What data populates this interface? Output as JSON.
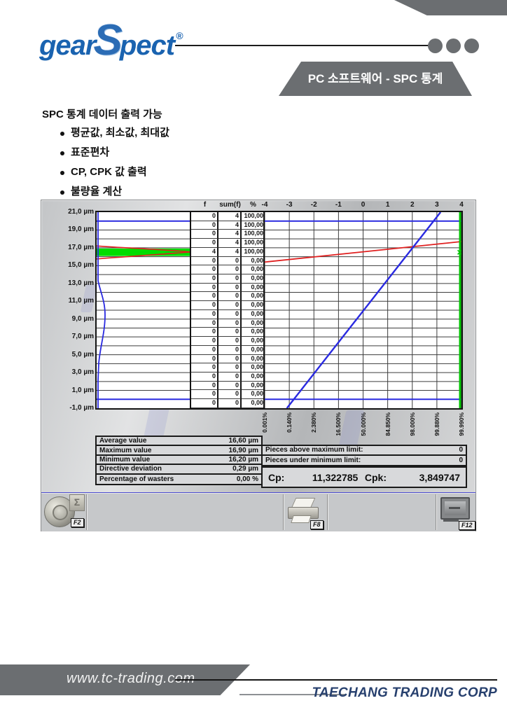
{
  "page": {
    "logo": {
      "part1": "gear",
      "part2": "S",
      "part3": "pect",
      "trademark": "®"
    },
    "header_banner": "PC 소프트웨어 - SPC 통계",
    "intro_title": "SPC 통계 데이터 출력 가능",
    "intro_bullets": [
      "평균값, 최소값, 최대값",
      "표준편차",
      "CP, CPK 값 출력",
      "불량율 계산"
    ],
    "footer": {
      "website": "www.tc-trading.com",
      "company": "TAECHANG TRADING CORP"
    }
  },
  "app": {
    "columns": {
      "f": "f",
      "sum": "sum(f)",
      "pct": "%"
    },
    "y_axis_labels": [
      "21,0 µm",
      "19,0 µm",
      "17,0 µm",
      "15,0 µm",
      "13,0 µm",
      "11,0 µm",
      "9,0 µm",
      "7,0 µm",
      "5,0 µm",
      "3,0 µm",
      "1,0 µm",
      "-1,0 µm"
    ],
    "stats": [
      {
        "label": "Average value",
        "value": "16,60 µm"
      },
      {
        "label": "Maximum value",
        "value": "16,90 µm"
      },
      {
        "label": "Minimum value",
        "value": "16,20 µm"
      },
      {
        "label": "Directive deviation",
        "value": "0,29 µm"
      },
      {
        "label": "Percentage of wasters",
        "value": "0,00 %"
      }
    ],
    "limit_counters": [
      {
        "label": "Pieces above maximum limit:",
        "value": "0"
      },
      {
        "label": "Pieces under minimum limit:",
        "value": "0"
      }
    ],
    "cp_label": "Cp:",
    "cp_value": "11,322785",
    "cpk_label": "Cpk:",
    "cpk_value": "3,849747",
    "buttons": [
      {
        "label": "F2",
        "icon": "statistics-wheel-icon"
      },
      {
        "label": "F8",
        "icon": "printer-icon"
      },
      {
        "label": "F12",
        "icon": "exit-monitor-icon"
      }
    ]
  },
  "chart_data": {
    "type": "bar",
    "subtype": "spc-histogram-with-normal-probability-plot",
    "title": "",
    "y_unit": "µm",
    "y_range": [
      -1,
      21
    ],
    "row_step_um": 1,
    "rows_top_to_bottom": 22,
    "f": [
      0,
      0,
      0,
      0,
      4,
      0,
      0,
      0,
      0,
      0,
      0,
      0,
      0,
      0,
      0,
      0,
      0,
      0,
      0,
      0,
      0,
      0
    ],
    "sum_f": [
      4,
      4,
      4,
      4,
      4,
      0,
      0,
      0,
      0,
      0,
      0,
      0,
      0,
      0,
      0,
      0,
      0,
      0,
      0,
      0,
      0,
      0
    ],
    "pct": [
      "100,00",
      "100,00",
      "100,00",
      "100,00",
      "100,00",
      "0,00",
      "0,00",
      "0,00",
      "0,00",
      "0,00",
      "0,00",
      "0,00",
      "0,00",
      "0,00",
      "0,00",
      "0,00",
      "0,00",
      "0,00",
      "0,00",
      "0,00",
      "0,00",
      "0,00"
    ],
    "histogram_highlight": {
      "um_from": 16,
      "um_to": 17,
      "f": 4
    },
    "tolerance": {
      "upper_um": 20,
      "lower_um": 0
    },
    "sigma_axis": [
      "-4",
      "-3",
      "-2",
      "-1",
      "0",
      "1",
      "2",
      "3",
      "4"
    ],
    "probability_labels": [
      "0.001%",
      "0.140%",
      "2.380%",
      "16.500%",
      "50.000%",
      "84.850%",
      "98.000%",
      "99.880%",
      "99.990%"
    ],
    "red_trend_line_um": {
      "at_minus4_sigma": 15.4,
      "at_plus4_sigma": 17.7
    },
    "blue_probability_line_sigma": {
      "at_bottom": -3.1,
      "at_top": 3.15
    },
    "green_axis_line_sigma": 4,
    "green_marker": {
      "sigma": 3.93,
      "um": 16.5
    },
    "colors": {
      "limit_line": "#2a2ae0",
      "distribution_line": "#e02020",
      "highlight_fill": "#00dd00",
      "axis_line": "#00c400"
    }
  }
}
